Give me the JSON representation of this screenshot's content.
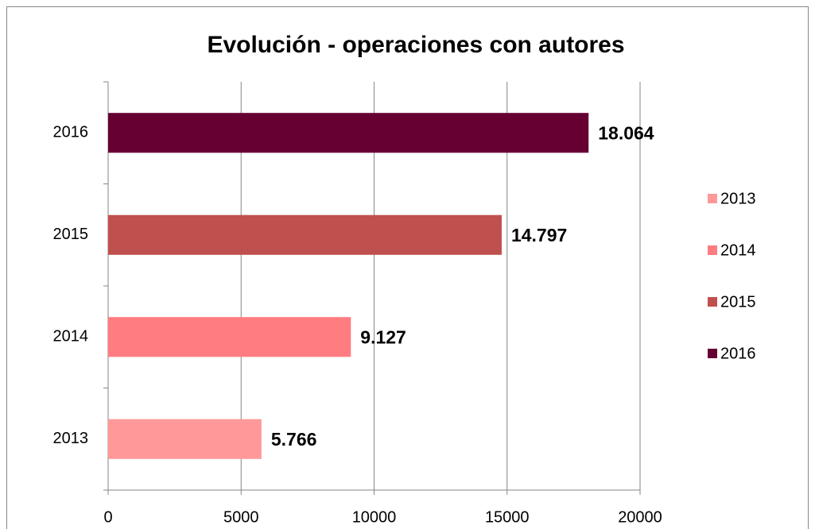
{
  "chart_data": {
    "type": "bar",
    "orientation": "horizontal",
    "stacked": true,
    "title": "Evolución - operaciones con autores",
    "categories": [
      "2013",
      "2014",
      "2015",
      "2016"
    ],
    "series": [
      {
        "name": "2013",
        "color": "#ff9999",
        "values": [
          5766,
          null,
          null,
          null
        ],
        "value_labels": [
          "5.766",
          null,
          null,
          null
        ]
      },
      {
        "name": "2014",
        "color": "#ff7c80",
        "values": [
          null,
          9127,
          null,
          null
        ],
        "value_labels": [
          null,
          "9.127",
          null,
          null
        ]
      },
      {
        "name": "2015",
        "color": "#c0504d",
        "values": [
          null,
          null,
          14797,
          null
        ],
        "value_labels": [
          null,
          null,
          "14.797",
          null
        ]
      },
      {
        "name": "2016",
        "color": "#660033",
        "values": [
          null,
          null,
          null,
          18064
        ],
        "value_labels": [
          null,
          null,
          null,
          "18.064"
        ]
      }
    ],
    "xlim": [
      0,
      20000
    ],
    "xticks": [
      0,
      5000,
      10000,
      15000,
      20000
    ],
    "grid": true,
    "legend": "right"
  }
}
